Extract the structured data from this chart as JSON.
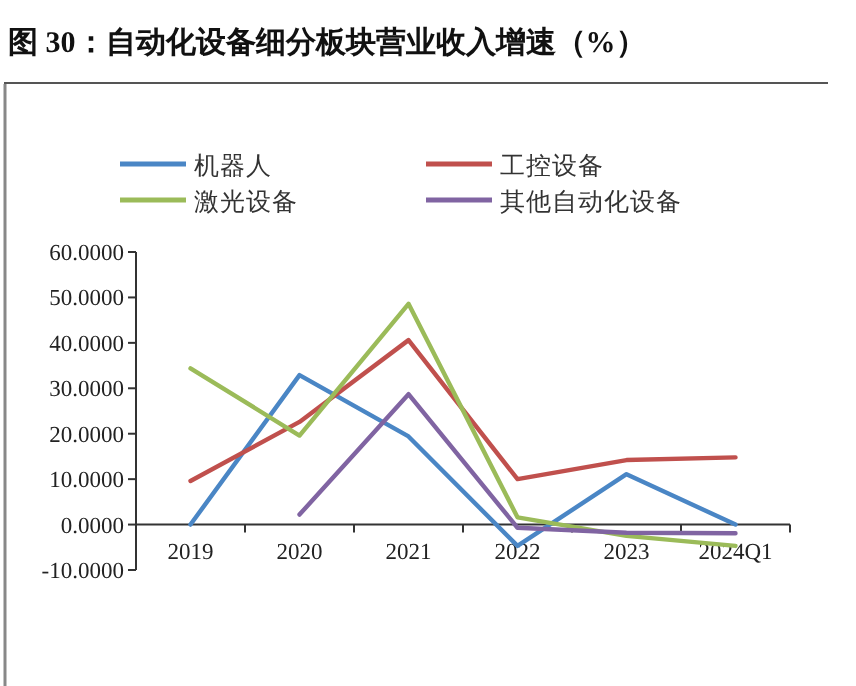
{
  "chart_data": {
    "type": "line",
    "title": "图 30：自动化设备细分板块营业收入增速（%）",
    "categories": [
      "2019",
      "2020",
      "2021",
      "2022",
      "2023",
      "2024Q1"
    ],
    "series": [
      {
        "name": "机器人",
        "color": "#4a86c5",
        "values": [
          0,
          32.9,
          19.4,
          -4.7,
          11.1,
          0
        ]
      },
      {
        "name": "工控设备",
        "color": "#c0504d",
        "values": [
          9.6,
          22.6,
          40.6,
          10.0,
          14.2,
          14.8
        ]
      },
      {
        "name": "激光设备",
        "color": "#9bbb59",
        "values": [
          34.4,
          19.6,
          48.6,
          1.6,
          -2.5,
          -4.7
        ]
      },
      {
        "name": "其他自动化设备",
        "color": "#8064a2",
        "values": [
          null,
          2.2,
          28.7,
          -0.7,
          -1.8,
          -1.9
        ]
      }
    ],
    "ylim": [
      -10,
      60
    ],
    "yticks": [
      {
        "value": -10,
        "label": "-10.0000"
      },
      {
        "value": 0,
        "label": "0.0000"
      },
      {
        "value": 10,
        "label": "10.0000"
      },
      {
        "value": 20,
        "label": "20.0000"
      },
      {
        "value": 30,
        "label": "30.0000"
      },
      {
        "value": 40,
        "label": "40.0000"
      },
      {
        "value": 50,
        "label": "50.0000"
      },
      {
        "value": 60,
        "label": "60.0000"
      }
    ],
    "legend": "top",
    "grid": false,
    "marker": "none",
    "line_style": "solid"
  }
}
